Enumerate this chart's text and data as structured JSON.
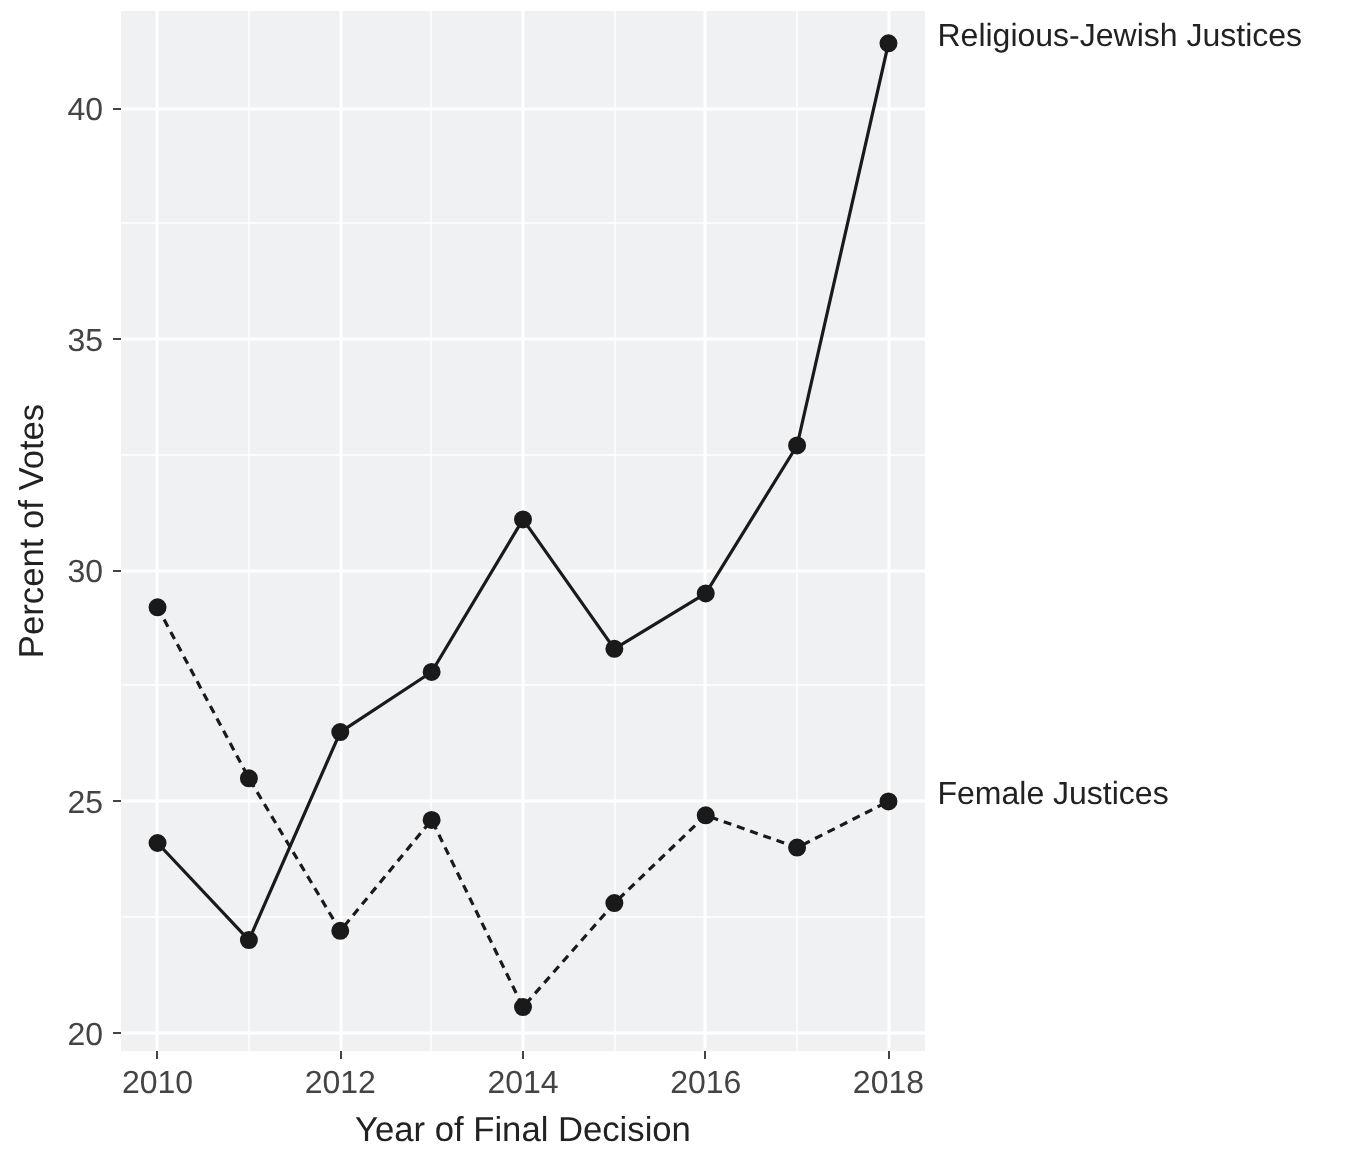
{
  "chart_data": {
    "type": "line",
    "xlabel": "Year of Final Decision",
    "ylabel": "Percent of Votes",
    "x": [
      2010,
      2011,
      2012,
      2013,
      2014,
      2015,
      2016,
      2017,
      2018
    ],
    "series": [
      {
        "name": "Religious-Jewish Justices",
        "color": "#1a1a1a",
        "line_style": "solid",
        "values": [
          24.1,
          22.0,
          26.5,
          27.8,
          31.1,
          28.3,
          29.5,
          32.7,
          41.4
        ]
      },
      {
        "name": "Female Justices",
        "color": "#1a1a1a",
        "line_style": "dashed",
        "values": [
          29.2,
          25.5,
          22.2,
          24.6,
          20.55,
          22.8,
          24.7,
          24.0,
          25.0
        ]
      }
    ],
    "xlim": [
      2009.6,
      2018.4
    ],
    "ylim": [
      19.6,
      42.1
    ],
    "xticks": [
      2010,
      2012,
      2014,
      2016,
      2018
    ],
    "yticks": [
      20,
      25,
      30,
      35,
      40
    ],
    "grid": true,
    "marker": "circle"
  }
}
